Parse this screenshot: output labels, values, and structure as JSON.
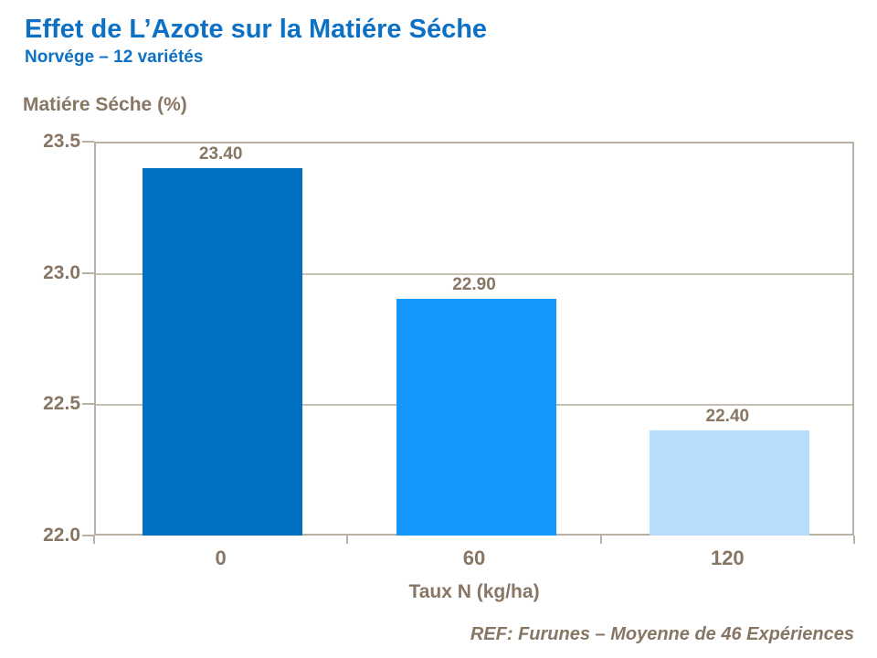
{
  "header": {
    "title": "Effet de L’Azote sur la Matiére Séche",
    "subtitle": "Norvége – 12 variétés"
  },
  "chart_data": {
    "type": "bar",
    "title": "Effet de L’Azote sur la Matiére Séche",
    "subtitle": "Norvége – 12 variétés",
    "ylabel": "Matiére Séche (%)",
    "xlabel": "Taux N (kg/ha)",
    "categories": [
      "0",
      "60",
      "120"
    ],
    "values": [
      23.4,
      22.9,
      22.4
    ],
    "value_labels": [
      "23.40",
      "22.90",
      "22.40"
    ],
    "bar_colors": [
      "#0070C0",
      "#1598FB",
      "#B8DCFB"
    ],
    "ylim": [
      22.0,
      23.5
    ],
    "yticks": [
      23.5,
      23.0,
      22.5,
      22.0
    ],
    "ytick_labels": [
      "23.5",
      "23.0",
      "22.5",
      "22.0"
    ],
    "grid": true,
    "legend": null
  },
  "footer": {
    "ref": "REF: Furunes – Moyenne de 46 Expériences"
  },
  "colors": {
    "title_blue": "#0C70C4",
    "axis_text_brown": "#877663",
    "line_tan": "#B9B1A4",
    "gridline_tan": "#C6BFB3"
  }
}
